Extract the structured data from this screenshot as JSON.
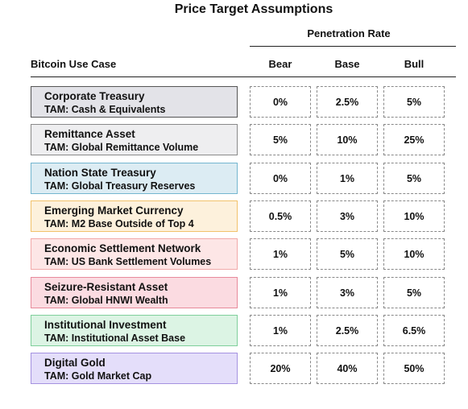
{
  "title": "Price Target Assumptions",
  "penetration_header": "Penetration Rate",
  "use_case_header": "Bitcoin Use Case",
  "columns": {
    "bear": "Bear",
    "base": "Base",
    "bull": "Bull"
  },
  "rows": [
    {
      "name": "Corporate Treasury",
      "tam": "TAM: Cash & Equivalents",
      "bear": "0%",
      "base": "2.5%",
      "bull": "5%",
      "color": "#e3e3e8",
      "border": "#555555"
    },
    {
      "name": "Remittance Asset",
      "tam": "TAM: Global Remittance Volume",
      "bear": "5%",
      "base": "10%",
      "bull": "25%",
      "color": "#eeeef0",
      "border": "#8a8a8a"
    },
    {
      "name": "Nation State Treasury",
      "tam": "TAM: Global Treasury Reserves",
      "bear": "0%",
      "base": "1%",
      "bull": "5%",
      "color": "#dcecf3",
      "border": "#74b6cf"
    },
    {
      "name": "Emerging Market Currency",
      "tam": "TAM: M2 Base Outside of Top 4",
      "bear": "0.5%",
      "base": "3%",
      "bull": "10%",
      "color": "#fdf1dc",
      "border": "#f2c26b"
    },
    {
      "name": "Economic Settlement Network",
      "tam": "TAM: US Bank Settlement Volumes",
      "bear": "1%",
      "base": "5%",
      "bull": "10%",
      "color": "#fde6e6",
      "border": "#f2a9a9"
    },
    {
      "name": "Seizure-Resistant Asset",
      "tam": "TAM: Global HNWI Wealth",
      "bear": "1%",
      "base": "3%",
      "bull": "5%",
      "color": "#fbdbe1",
      "border": "#e88a9b"
    },
    {
      "name": "Institutional Investment",
      "tam": "TAM: Institutional Asset Base",
      "bear": "1%",
      "base": "2.5%",
      "bull": "6.5%",
      "color": "#dcf4e4",
      "border": "#7fcf9b"
    },
    {
      "name": "Digital Gold",
      "tam": "TAM: Gold Market Cap",
      "bear": "20%",
      "base": "40%",
      "bull": "50%",
      "color": "#e4defa",
      "border": "#a592e0"
    }
  ]
}
